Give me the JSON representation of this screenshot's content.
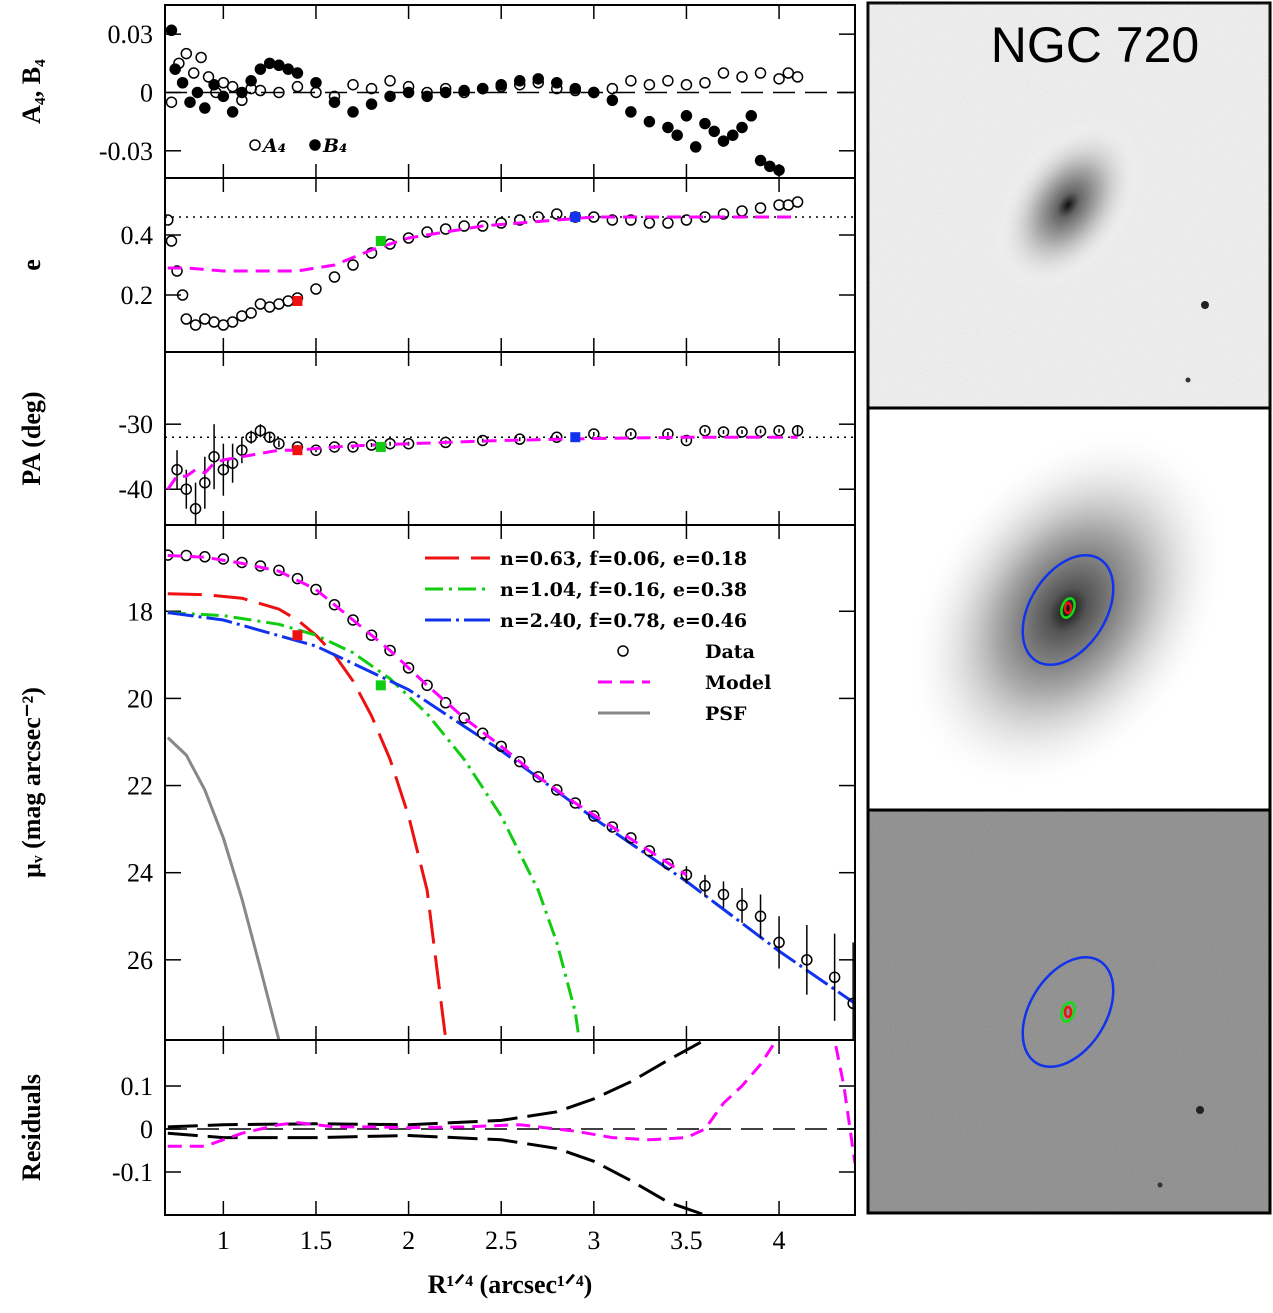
{
  "chart_data": [
    {
      "type": "line",
      "ylabel": "A₄,  B₄",
      "xlim": [
        0.685,
        4.41
      ],
      "ylim": [
        -0.044,
        0.045
      ],
      "yticks": [
        0.03,
        0,
        -0.03
      ],
      "reference_line": 0,
      "legend": "lower left",
      "series": [
        {
          "name": "A₄",
          "marker": "open-circle",
          "color": "#000",
          "x": [
            0.72,
            0.76,
            0.8,
            0.84,
            0.88,
            0.92,
            0.96,
            1.0,
            1.05,
            1.1,
            1.15,
            1.2,
            1.3,
            1.4,
            1.5,
            1.6,
            1.7,
            1.8,
            1.9,
            2.0,
            2.1,
            2.2,
            2.3,
            2.4,
            2.5,
            2.6,
            2.7,
            2.8,
            2.9,
            3.0,
            3.1,
            3.2,
            3.3,
            3.4,
            3.5,
            3.6,
            3.7,
            3.8,
            3.9,
            4.0,
            4.05,
            4.1
          ],
          "values": [
            -0.005,
            0.015,
            0.02,
            0.01,
            0.018,
            0.008,
            0.0,
            0.005,
            0.003,
            -0.004,
            0.002,
            0.001,
            0.0,
            0.003,
            0.0,
            -0.002,
            0.004,
            0.002,
            0.006,
            0.003,
            0.0,
            0.002,
            0.0,
            0.002,
            0.003,
            0.004,
            0.005,
            0.002,
            0.001,
            0.0,
            0.002,
            0.006,
            0.004,
            0.006,
            0.004,
            0.005,
            0.01,
            0.008,
            0.01,
            0.007,
            0.01,
            0.008
          ]
        },
        {
          "name": "B₄",
          "marker": "filled-circle",
          "color": "#000",
          "x": [
            0.72,
            0.74,
            0.78,
            0.82,
            0.86,
            0.9,
            0.95,
            1.0,
            1.05,
            1.1,
            1.15,
            1.2,
            1.25,
            1.3,
            1.35,
            1.4,
            1.5,
            1.6,
            1.7,
            1.8,
            1.9,
            2.0,
            2.1,
            2.2,
            2.3,
            2.4,
            2.5,
            2.6,
            2.7,
            2.8,
            2.9,
            3.0,
            3.1,
            3.2,
            3.3,
            3.4,
            3.45,
            3.5,
            3.55,
            3.6,
            3.65,
            3.7,
            3.75,
            3.8,
            3.85,
            3.9,
            3.95,
            4.0
          ],
          "values": [
            0.032,
            0.012,
            0.005,
            -0.005,
            0.0,
            -0.008,
            0.004,
            -0.002,
            -0.01,
            0.0,
            0.006,
            0.012,
            0.015,
            0.014,
            0.012,
            0.01,
            0.005,
            -0.005,
            -0.01,
            -0.006,
            -0.002,
            0.0,
            -0.002,
            0.0,
            0.001,
            0.002,
            0.004,
            0.006,
            0.007,
            0.005,
            0.002,
            0.0,
            -0.004,
            -0.01,
            -0.015,
            -0.018,
            -0.022,
            -0.012,
            -0.028,
            -0.016,
            -0.02,
            -0.025,
            -0.022,
            -0.018,
            -0.012,
            -0.035,
            -0.038,
            -0.04
          ]
        }
      ]
    },
    {
      "type": "line",
      "ylabel": "e",
      "xlim": [
        0.685,
        4.41
      ],
      "ylim": [
        0.01,
        0.59
      ],
      "yticks": [
        0.2,
        0.4
      ],
      "reference_line": 0.46,
      "series": [
        {
          "marker": "open-circle",
          "color": "#000",
          "x": [
            0.7,
            0.72,
            0.75,
            0.78,
            0.8,
            0.85,
            0.9,
            0.95,
            1.0,
            1.05,
            1.1,
            1.15,
            1.2,
            1.25,
            1.3,
            1.35,
            1.4,
            1.5,
            1.6,
            1.7,
            1.8,
            1.9,
            2.0,
            2.1,
            2.2,
            2.3,
            2.4,
            2.5,
            2.6,
            2.7,
            2.8,
            2.9,
            3.0,
            3.1,
            3.2,
            3.3,
            3.4,
            3.5,
            3.6,
            3.7,
            3.8,
            3.9,
            4.0,
            4.05,
            4.1
          ],
          "values": [
            0.45,
            0.38,
            0.28,
            0.2,
            0.12,
            0.1,
            0.12,
            0.11,
            0.1,
            0.11,
            0.13,
            0.14,
            0.17,
            0.16,
            0.17,
            0.18,
            0.19,
            0.22,
            0.26,
            0.3,
            0.34,
            0.37,
            0.39,
            0.41,
            0.42,
            0.43,
            0.43,
            0.44,
            0.45,
            0.46,
            0.47,
            0.46,
            0.46,
            0.45,
            0.45,
            0.44,
            0.44,
            0.45,
            0.46,
            0.47,
            0.48,
            0.49,
            0.5,
            0.5,
            0.51
          ]
        },
        {
          "color": "#ff00ff",
          "dash": "14,8",
          "x": [
            0.7,
            0.8,
            1.0,
            1.2,
            1.4,
            1.6,
            1.8,
            2.0,
            2.2,
            2.4,
            2.6,
            2.8,
            3.0,
            3.2,
            3.4,
            3.6,
            3.8,
            4.0,
            4.1
          ],
          "values": [
            0.29,
            0.29,
            0.28,
            0.28,
            0.28,
            0.3,
            0.35,
            0.39,
            0.41,
            0.43,
            0.44,
            0.45,
            0.46,
            0.46,
            0.46,
            0.46,
            0.46,
            0.46,
            0.46
          ]
        },
        {
          "marker": "square",
          "colors": [
            "#ee1111",
            "#11cc11",
            "#1133ee"
          ],
          "x": [
            1.4,
            1.85,
            2.9
          ],
          "values": [
            0.18,
            0.38,
            0.46
          ]
        }
      ]
    },
    {
      "type": "line",
      "ylabel": "PA (deg)",
      "xlim": [
        0.685,
        4.41
      ],
      "ylim": [
        -45.5,
        -18.9
      ],
      "yticks": [
        -30,
        -40
      ],
      "reference_line": -32,
      "series": [
        {
          "marker": "open-circle",
          "color": "#000",
          "x": [
            0.75,
            0.8,
            0.85,
            0.9,
            0.95,
            1.0,
            1.05,
            1.1,
            1.15,
            1.2,
            1.25,
            1.3,
            1.4,
            1.5,
            1.6,
            1.7,
            1.8,
            1.9,
            2.0,
            2.2,
            2.4,
            2.6,
            2.8,
            3.0,
            3.2,
            3.4,
            3.5,
            3.6,
            3.7,
            3.8,
            3.9,
            4.0,
            4.1
          ],
          "values": [
            -37,
            -40,
            -43,
            -39,
            -35,
            -37,
            -36,
            -34,
            -32,
            -31,
            -32,
            -33,
            -33.5,
            -34,
            -33.5,
            -33.5,
            -33.2,
            -33,
            -33,
            -32.8,
            -32.5,
            -32.3,
            -32,
            -31.5,
            -31.5,
            -31.5,
            -32.5,
            -31,
            -31.2,
            -31.2,
            -31.1,
            -31,
            -31
          ],
          "errors": [
            3,
            3,
            4,
            4,
            5,
            4,
            3,
            2,
            1,
            1,
            0.7,
            0.5,
            0.3,
            0.3,
            0.3,
            0.3,
            0.3,
            0.3,
            0.3,
            0.3,
            0.3,
            0.3,
            0.3,
            0.3,
            0.3,
            0.3,
            0.3,
            0.3,
            0.3,
            0.3,
            0.3,
            0.3,
            0.8
          ]
        },
        {
          "color": "#ff00ff",
          "dash": "14,8",
          "x": [
            0.7,
            0.75,
            0.8,
            0.85,
            0.9,
            0.95,
            1.0,
            1.1,
            1.2,
            1.3,
            1.4,
            1.6,
            1.8,
            2.0,
            2.5,
            3.0,
            3.5,
            4.0,
            4.1
          ],
          "values": [
            -40,
            -38,
            -38,
            -37,
            -37.5,
            -36,
            -35.5,
            -35,
            -34.5,
            -34,
            -34,
            -33.5,
            -33.2,
            -33,
            -32.5,
            -32.2,
            -32,
            -32,
            -32
          ]
        },
        {
          "marker": "square",
          "colors": [
            "#ee1111",
            "#11cc11",
            "#1133ee"
          ],
          "x": [
            1.4,
            1.85,
            2.9
          ],
          "values": [
            -34,
            -33.5,
            -32
          ]
        }
      ]
    },
    {
      "type": "line",
      "ylabel": "μᵥ (mag arcsec⁻²)",
      "xlim": [
        0.685,
        4.41
      ],
      "ylim": [
        27.84,
        16.02
      ],
      "yticks": [
        18,
        20,
        22,
        24,
        26
      ],
      "legend": "upper right",
      "series": [
        {
          "name": "n=0.63,  f=0.06,  e=0.18",
          "color": "#ee1111",
          "dash": "34,12",
          "x": [
            0.7,
            0.9,
            1.1,
            1.3,
            1.4,
            1.5,
            1.6,
            1.7,
            1.8,
            1.9,
            2.0,
            2.1,
            2.2
          ],
          "values": [
            17.6,
            17.62,
            17.7,
            17.95,
            18.2,
            18.55,
            19.0,
            19.6,
            20.4,
            21.4,
            22.7,
            24.4,
            27.8
          ]
        },
        {
          "name": "n=1.04,  f=0.16,  e=0.38",
          "color": "#11cc11",
          "dash": "18,6,3,6",
          "x": [
            0.7,
            1.0,
            1.3,
            1.5,
            1.7,
            1.9,
            2.1,
            2.3,
            2.5,
            2.7,
            2.8,
            2.9,
            2.92
          ],
          "values": [
            18.03,
            18.1,
            18.3,
            18.55,
            18.95,
            19.55,
            20.35,
            21.4,
            22.7,
            24.4,
            25.6,
            27.2,
            27.8
          ]
        },
        {
          "name": "n=2.40,  f=0.78,  e=0.46",
          "color": "#1133ee",
          "dash": "26,5,3,5",
          "x": [
            0.7,
            1.0,
            1.5,
            2.0,
            2.5,
            3.0,
            3.5,
            4.0,
            4.41
          ],
          "values": [
            18.03,
            18.2,
            18.8,
            19.8,
            21.2,
            22.75,
            24.2,
            25.8,
            27.0
          ]
        },
        {
          "name": "Data",
          "marker": "open-circle",
          "color": "#000",
          "x": [
            0.7,
            0.8,
            0.9,
            1.0,
            1.1,
            1.2,
            1.3,
            1.4,
            1.5,
            1.6,
            1.7,
            1.8,
            1.9,
            2.0,
            2.1,
            2.2,
            2.3,
            2.4,
            2.5,
            2.6,
            2.7,
            2.8,
            2.9,
            3.0,
            3.1,
            3.2,
            3.3,
            3.4,
            3.5,
            3.6,
            3.7,
            3.8,
            3.9,
            4.0,
            4.15,
            4.3,
            4.4
          ],
          "values": [
            16.71,
            16.72,
            16.75,
            16.8,
            16.88,
            16.96,
            17.06,
            17.25,
            17.5,
            17.85,
            18.2,
            18.55,
            18.9,
            19.3,
            19.7,
            20.1,
            20.45,
            20.8,
            21.1,
            21.45,
            21.8,
            22.1,
            22.4,
            22.7,
            22.95,
            23.2,
            23.5,
            23.8,
            24.05,
            24.3,
            24.5,
            24.75,
            25.0,
            25.6,
            26.0,
            26.4,
            27.0
          ],
          "errors": [
            0,
            0,
            0,
            0,
            0,
            0,
            0,
            0,
            0,
            0,
            0,
            0,
            0,
            0,
            0,
            0,
            0,
            0,
            0,
            0,
            0,
            0,
            0,
            0,
            0,
            0,
            0,
            0,
            0.2,
            0.25,
            0.3,
            0.4,
            0.5,
            0.6,
            0.8,
            1.0,
            1.4
          ]
        },
        {
          "name": "Model",
          "color": "#ff00ff",
          "dash": "14,8",
          "x": [
            0.7,
            0.9,
            1.1,
            1.3,
            1.5,
            1.7,
            1.9,
            2.1,
            2.3,
            2.5,
            2.7,
            2.9,
            3.1,
            3.3,
            3.5
          ],
          "values": [
            16.72,
            16.76,
            16.9,
            17.08,
            17.5,
            18.2,
            18.9,
            19.7,
            20.45,
            21.1,
            21.8,
            22.4,
            22.95,
            23.5,
            24.05
          ]
        },
        {
          "name": "PSF",
          "color": "#888888",
          "x": [
            0.7,
            0.8,
            0.9,
            1.0,
            1.1,
            1.2,
            1.3
          ],
          "values": [
            20.9,
            21.3,
            22.1,
            23.2,
            24.6,
            26.2,
            27.84
          ]
        },
        {
          "marker": "square",
          "colors": [
            "#ee1111",
            "#11cc11"
          ],
          "x": [
            1.4,
            1.85
          ],
          "values": [
            18.55,
            19.7
          ]
        }
      ]
    },
    {
      "type": "line",
      "ylabel": "Residuals",
      "xlabel": "R¹ᐟ⁴ (arcsec¹ᐟ⁴)",
      "xlim": [
        0.685,
        4.41
      ],
      "ylim": [
        -0.2,
        0.207
      ],
      "yticks": [
        0.1,
        0,
        -0.1
      ],
      "reference_line": 0,
      "xticks": [
        1,
        1.5,
        2,
        2.5,
        3,
        3.5,
        4
      ],
      "series": [
        {
          "color": "#000",
          "dash": "30,10",
          "x": [
            0.7,
            1.0,
            1.5,
            2.0,
            2.5,
            2.8,
            3.0,
            3.2,
            3.4,
            3.6
          ],
          "values": [
            0.005,
            0.01,
            0.012,
            0.01,
            0.02,
            0.04,
            0.07,
            0.11,
            0.16,
            0.207
          ]
        },
        {
          "color": "#000",
          "dash": "30,10",
          "x": [
            0.7,
            1.0,
            1.5,
            2.0,
            2.5,
            2.8,
            3.0,
            3.2,
            3.4,
            3.6
          ],
          "values": [
            -0.01,
            -0.02,
            -0.02,
            -0.015,
            -0.025,
            -0.045,
            -0.075,
            -0.12,
            -0.17,
            -0.2
          ]
        },
        {
          "color": "#ff00ff",
          "dash": "14,8",
          "x": [
            0.7,
            0.9,
            1.1,
            1.3,
            1.4,
            1.6,
            1.8,
            2.0,
            2.3,
            2.6,
            2.9,
            3.1,
            3.3,
            3.5,
            3.6,
            3.7,
            3.8,
            3.9,
            4.05,
            4.28,
            4.35,
            4.41
          ],
          "values": [
            -0.04,
            -0.04,
            -0.01,
            0.01,
            0.015,
            0.005,
            0.005,
            0.003,
            0.005,
            0.01,
            -0.005,
            -0.02,
            -0.025,
            -0.02,
            0.0,
            0.06,
            0.1,
            0.15,
            0.25,
            0.25,
            0.1,
            -0.08
          ]
        }
      ]
    }
  ],
  "image_panel": {
    "title": "NGC 720"
  }
}
